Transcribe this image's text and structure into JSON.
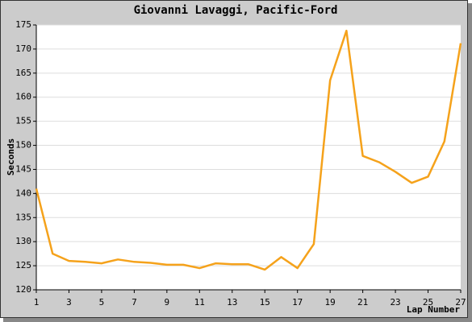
{
  "chart_data": {
    "type": "line",
    "title": "Giovanni Lavaggi, Pacific-Ford",
    "x_label": "Lap Number",
    "y_label": "Seconds",
    "x": [
      1,
      2,
      3,
      4,
      5,
      6,
      7,
      8,
      9,
      10,
      11,
      12,
      13,
      14,
      15,
      16,
      17,
      18,
      19,
      20,
      21,
      22,
      23,
      24,
      25,
      26,
      27
    ],
    "series": [
      {
        "name": "Giovanni Lavaggi",
        "color": "#f5a21b",
        "values": [
          141,
          127.5,
          126,
          125.8,
          125.5,
          126.3,
          125.8,
          125.6,
          125.2,
          125.2,
          124.5,
          125.5,
          125.3,
          125.3,
          124.2,
          126.8,
          124.5,
          129.5,
          163.5,
          173.8,
          147.8,
          146.5,
          144.5,
          142.2,
          143.5,
          150.8,
          171.2
        ]
      }
    ],
    "xlim": [
      1,
      27
    ],
    "xticks": [
      1,
      3,
      5,
      7,
      9,
      11,
      13,
      15,
      17,
      19,
      21,
      23,
      25,
      27
    ],
    "ylim": [
      120,
      175
    ],
    "yticks": [
      120,
      125,
      130,
      135,
      140,
      145,
      150,
      155,
      160,
      165,
      170,
      175
    ],
    "grid": true
  }
}
